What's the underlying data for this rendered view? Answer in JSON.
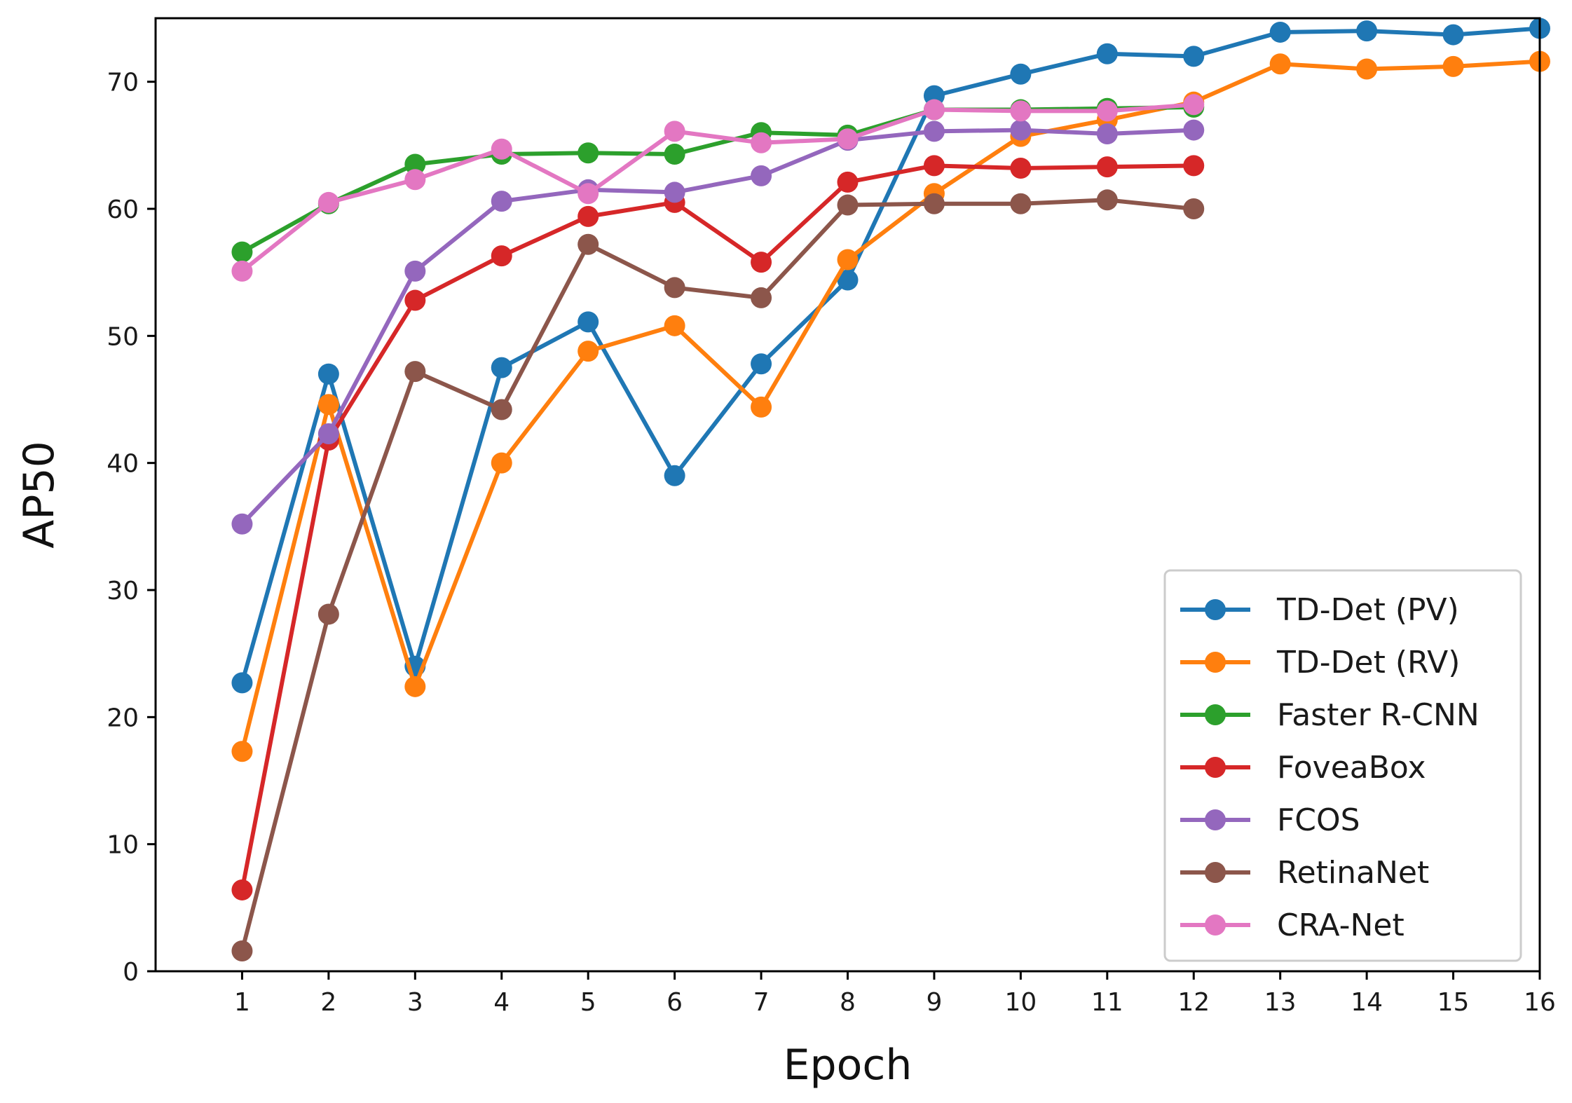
{
  "chart_data": {
    "type": "line",
    "title": "",
    "xlabel": "Epoch",
    "ylabel": "AP50",
    "xlim": [
      0,
      16
    ],
    "ylim": [
      0,
      75
    ],
    "x_ticks": [
      1,
      2,
      3,
      4,
      5,
      6,
      7,
      8,
      9,
      10,
      11,
      12,
      13,
      14,
      15,
      16
    ],
    "y_ticks": [
      0,
      10,
      20,
      30,
      40,
      50,
      60,
      70
    ],
    "grid": false,
    "legend_position": "bottom-right",
    "series": [
      {
        "name": "TD-Det (PV)",
        "color": "#1f77b4",
        "x": [
          1,
          2,
          3,
          4,
          5,
          6,
          7,
          8,
          9,
          10,
          11,
          12,
          13,
          14,
          15,
          16
        ],
        "values": [
          22.7,
          47.0,
          24.0,
          47.5,
          51.1,
          39.0,
          47.8,
          54.4,
          68.9,
          70.6,
          72.2,
          72.0,
          73.9,
          74.0,
          73.7,
          74.2
        ]
      },
      {
        "name": "TD-Det (RV)",
        "color": "#ff7f0e",
        "x": [
          1,
          2,
          3,
          4,
          5,
          6,
          7,
          8,
          9,
          10,
          11,
          12,
          13,
          14,
          15,
          16
        ],
        "values": [
          17.3,
          44.6,
          22.4,
          40.0,
          48.8,
          50.8,
          44.4,
          56.0,
          61.2,
          65.7,
          67.0,
          68.4,
          71.4,
          71.0,
          71.2,
          71.6
        ]
      },
      {
        "name": "Faster R-CNN",
        "color": "#2ca02c",
        "x": [
          1,
          2,
          3,
          4,
          5,
          6,
          7,
          8,
          9,
          10,
          11,
          12
        ],
        "values": [
          56.6,
          60.4,
          63.5,
          64.3,
          64.4,
          64.3,
          66.0,
          65.8,
          67.8,
          67.8,
          67.9,
          68.0
        ]
      },
      {
        "name": "FoveaBox",
        "color": "#d62728",
        "x": [
          1,
          2,
          3,
          4,
          5,
          6,
          7,
          8,
          9,
          10,
          11,
          12
        ],
        "values": [
          6.4,
          41.8,
          52.8,
          56.3,
          59.4,
          60.5,
          55.8,
          62.1,
          63.4,
          63.2,
          63.3,
          63.4
        ]
      },
      {
        "name": "FCOS",
        "color": "#9467bd",
        "x": [
          1,
          2,
          3,
          4,
          5,
          6,
          7,
          8,
          9,
          10,
          11,
          12
        ],
        "values": [
          35.2,
          42.3,
          55.1,
          60.6,
          61.5,
          61.3,
          62.6,
          65.4,
          66.1,
          66.2,
          65.9,
          66.2
        ]
      },
      {
        "name": "RetinaNet",
        "color": "#8c564b",
        "x": [
          1,
          2,
          3,
          4,
          5,
          6,
          7,
          8,
          9,
          10,
          11,
          12
        ],
        "values": [
          1.6,
          28.1,
          47.2,
          44.2,
          57.2,
          53.8,
          53.0,
          60.3,
          60.4,
          60.4,
          60.7,
          60.0
        ]
      },
      {
        "name": "CRA-Net",
        "color": "#e377c2",
        "x": [
          1,
          2,
          3,
          4,
          5,
          6,
          7,
          8,
          9,
          10,
          11,
          12
        ],
        "values": [
          55.1,
          60.5,
          62.3,
          64.7,
          61.2,
          66.1,
          65.2,
          65.5,
          67.8,
          67.7,
          67.7,
          68.2
        ]
      }
    ]
  }
}
